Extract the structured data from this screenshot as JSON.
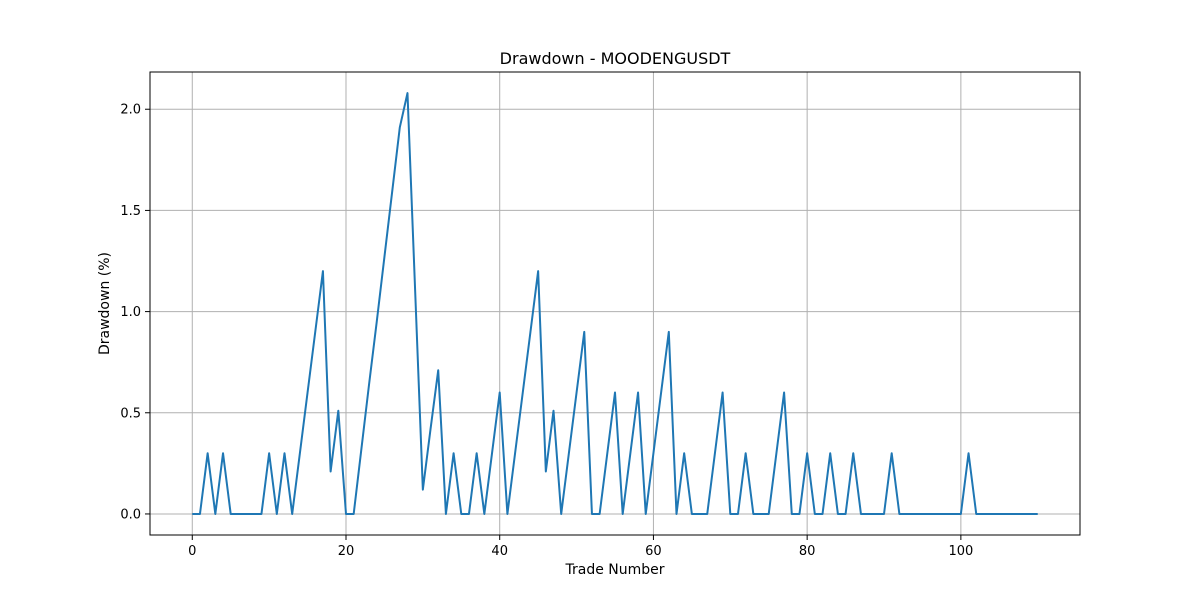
{
  "chart_data": {
    "type": "line",
    "title": "Drawdown - MOODENGUSDT",
    "xlabel": "Trade Number",
    "ylabel": "Drawdown (%)",
    "xlim": [
      -5.5,
      115.5
    ],
    "ylim": [
      -0.104,
      2.184
    ],
    "xticks": [
      0,
      20,
      40,
      60,
      80,
      100
    ],
    "xtick_labels": [
      "0",
      "20",
      "40",
      "60",
      "80",
      "100"
    ],
    "yticks": [
      0.0,
      0.5,
      1.0,
      1.5,
      2.0
    ],
    "ytick_labels": [
      "0.0",
      "0.5",
      "1.0",
      "1.5",
      "2.0"
    ],
    "grid": true,
    "color": "#1f77b4",
    "series": [
      {
        "x": [
          0,
          1,
          2,
          3,
          4,
          5,
          6,
          7,
          8,
          9,
          10,
          11,
          12,
          13,
          14,
          15,
          16,
          17,
          18,
          19,
          20,
          21,
          22,
          23,
          24,
          25,
          26,
          27,
          28,
          29,
          30,
          31,
          32,
          33,
          34,
          35,
          36,
          37,
          38,
          39,
          40,
          41,
          42,
          43,
          44,
          45,
          46,
          47,
          48,
          49,
          50,
          51,
          52,
          53,
          54,
          55,
          56,
          57,
          58,
          59,
          60,
          61,
          62,
          63,
          64,
          65,
          66,
          67,
          68,
          69,
          70,
          71,
          72,
          73,
          74,
          75,
          76,
          77,
          78,
          79,
          80,
          81,
          82,
          83,
          84,
          85,
          86,
          87,
          88,
          89,
          90,
          91,
          92,
          93,
          94,
          95,
          96,
          97,
          98,
          99,
          100,
          101,
          102,
          103,
          104,
          105,
          106,
          107,
          108,
          109,
          110
        ],
        "y": [
          0,
          0,
          0.3,
          0,
          0.3,
          0,
          0,
          0,
          0,
          0,
          0.3,
          0,
          0.3,
          0,
          0.3,
          0.6,
          0.9,
          1.2,
          0.21,
          0.51,
          0,
          0,
          0.32,
          0.64,
          0.95,
          1.27,
          1.59,
          1.91,
          2.08,
          1.1,
          0.12,
          0.42,
          0.71,
          0,
          0.3,
          0,
          0,
          0.3,
          0,
          0.3,
          0.6,
          0,
          0.3,
          0.6,
          0.9,
          1.2,
          0.21,
          0.51,
          0,
          0.3,
          0.6,
          0.9,
          0,
          0,
          0.3,
          0.6,
          0,
          0.3,
          0.6,
          0,
          0.3,
          0.6,
          0.9,
          0,
          0.3,
          0,
          0,
          0,
          0.3,
          0.6,
          0,
          0,
          0.3,
          0,
          0,
          0,
          0.3,
          0.6,
          0,
          0,
          0.3,
          0,
          0,
          0.3,
          0,
          0,
          0.3,
          0,
          0,
          0,
          0,
          0.3,
          0,
          0,
          0,
          0,
          0,
          0,
          0,
          0,
          0,
          0.3,
          0,
          0,
          0,
          0,
          0,
          0,
          0,
          0,
          0
        ]
      }
    ]
  }
}
